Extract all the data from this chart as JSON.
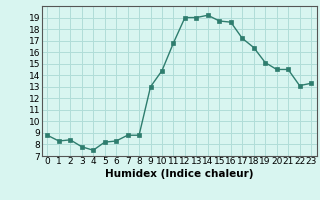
{
  "x": [
    0,
    1,
    2,
    3,
    4,
    5,
    6,
    7,
    8,
    9,
    10,
    11,
    12,
    13,
    14,
    15,
    16,
    17,
    18,
    19,
    20,
    21,
    22,
    23
  ],
  "y": [
    8.8,
    8.3,
    8.4,
    7.8,
    7.5,
    8.2,
    8.3,
    8.8,
    8.8,
    13.0,
    14.4,
    16.8,
    19.0,
    19.0,
    19.2,
    18.7,
    18.6,
    17.2,
    16.4,
    15.1,
    14.5,
    14.5,
    13.1,
    13.3
  ],
  "line_color": "#2e7d6e",
  "marker_color": "#2e7d6e",
  "bg_color": "#d8f5f0",
  "grid_color": "#b0ddd8",
  "xlabel": "Humidex (Indice chaleur)",
  "xlim": [
    -0.5,
    23.5
  ],
  "ylim": [
    7,
    20
  ],
  "yticks": [
    7,
    8,
    9,
    10,
    11,
    12,
    13,
    14,
    15,
    16,
    17,
    18,
    19
  ],
  "xticks": [
    0,
    1,
    2,
    3,
    4,
    5,
    6,
    7,
    8,
    9,
    10,
    11,
    12,
    13,
    14,
    15,
    16,
    17,
    18,
    19,
    20,
    21,
    22,
    23
  ],
  "fontsize_axis": 6.5,
  "fontsize_label": 7.5,
  "marker_size": 2.5,
  "line_width": 1.0
}
